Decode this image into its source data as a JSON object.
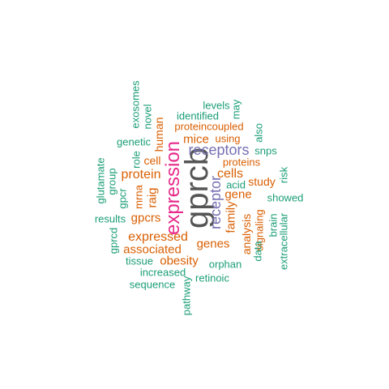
{
  "colors": {
    "dark_gray": "#555555",
    "magenta": "#e7298a",
    "purple": "#7570b3",
    "orange": "#d95f02",
    "teal": "#1b9e77",
    "background": "#ffffff"
  },
  "words": [
    {
      "id": "gprcb",
      "text": "gprcb",
      "color": "dark_gray"
    },
    {
      "id": "expression",
      "text": "expression",
      "color": "magenta"
    },
    {
      "id": "receptors",
      "text": "receptors",
      "color": "purple"
    },
    {
      "id": "receptor",
      "text": "receptor",
      "color": "purple"
    },
    {
      "id": "cells",
      "text": "cells",
      "color": "orange"
    },
    {
      "id": "protein",
      "text": "protein",
      "color": "orange"
    },
    {
      "id": "expressed",
      "text": "expressed",
      "color": "orange"
    },
    {
      "id": "associated",
      "text": "associated",
      "color": "orange"
    },
    {
      "id": "obesity",
      "text": "obesity",
      "color": "orange"
    },
    {
      "id": "genes",
      "text": "genes",
      "color": "orange"
    },
    {
      "id": "mice",
      "text": "mice",
      "color": "orange"
    },
    {
      "id": "gene",
      "text": "gene",
      "color": "orange"
    },
    {
      "id": "gpcrs",
      "text": "gpcrs",
      "color": "orange"
    },
    {
      "id": "study",
      "text": "study",
      "color": "orange"
    },
    {
      "id": "family",
      "text": "family",
      "color": "orange"
    },
    {
      "id": "analysis",
      "text": "analysis",
      "color": "orange"
    },
    {
      "id": "raig",
      "text": "raig",
      "color": "orange"
    },
    {
      "id": "human",
      "text": "human",
      "color": "orange"
    },
    {
      "id": "cell",
      "text": "cell",
      "color": "orange"
    },
    {
      "id": "using",
      "text": "using",
      "color": "orange"
    },
    {
      "id": "proteins",
      "text": "proteins",
      "color": "orange"
    },
    {
      "id": "proteincoupled",
      "text": "proteincoupled",
      "color": "orange"
    },
    {
      "id": "mrna",
      "text": "mrna",
      "color": "orange"
    },
    {
      "id": "signaling",
      "text": "signaling",
      "color": "orange"
    },
    {
      "id": "identified",
      "text": "identified",
      "color": "teal"
    },
    {
      "id": "levels",
      "text": "levels",
      "color": "teal"
    },
    {
      "id": "may",
      "text": "may",
      "color": "teal"
    },
    {
      "id": "exosomes",
      "text": "exosomes",
      "color": "teal"
    },
    {
      "id": "novel",
      "text": "novel",
      "color": "teal"
    },
    {
      "id": "genetic",
      "text": "genetic",
      "color": "teal"
    },
    {
      "id": "role",
      "text": "role",
      "color": "teal"
    },
    {
      "id": "also",
      "text": "also",
      "color": "teal"
    },
    {
      "id": "snps",
      "text": "snps",
      "color": "teal"
    },
    {
      "id": "glutamate",
      "text": "glutamate",
      "color": "teal"
    },
    {
      "id": "group",
      "text": "group",
      "color": "teal"
    },
    {
      "id": "gpcr",
      "text": "gpcr",
      "color": "teal"
    },
    {
      "id": "acid",
      "text": "acid",
      "color": "teal"
    },
    {
      "id": "risk",
      "text": "risk",
      "color": "teal"
    },
    {
      "id": "showed",
      "text": "showed",
      "color": "teal"
    },
    {
      "id": "results",
      "text": "results",
      "color": "teal"
    },
    {
      "id": "brain",
      "text": "brain",
      "color": "teal"
    },
    {
      "id": "gprcd",
      "text": "gprcd",
      "color": "teal"
    },
    {
      "id": "data",
      "text": "data",
      "color": "teal"
    },
    {
      "id": "extracellular",
      "text": "extracellular",
      "color": "teal"
    },
    {
      "id": "tissue",
      "text": "tissue",
      "color": "teal"
    },
    {
      "id": "orphan",
      "text": "orphan",
      "color": "teal"
    },
    {
      "id": "increased",
      "text": "increased",
      "color": "teal"
    },
    {
      "id": "retinoic",
      "text": "retinoic",
      "color": "teal"
    },
    {
      "id": "sequence",
      "text": "sequence",
      "color": "teal"
    },
    {
      "id": "pathway",
      "text": "pathway",
      "color": "teal"
    }
  ]
}
